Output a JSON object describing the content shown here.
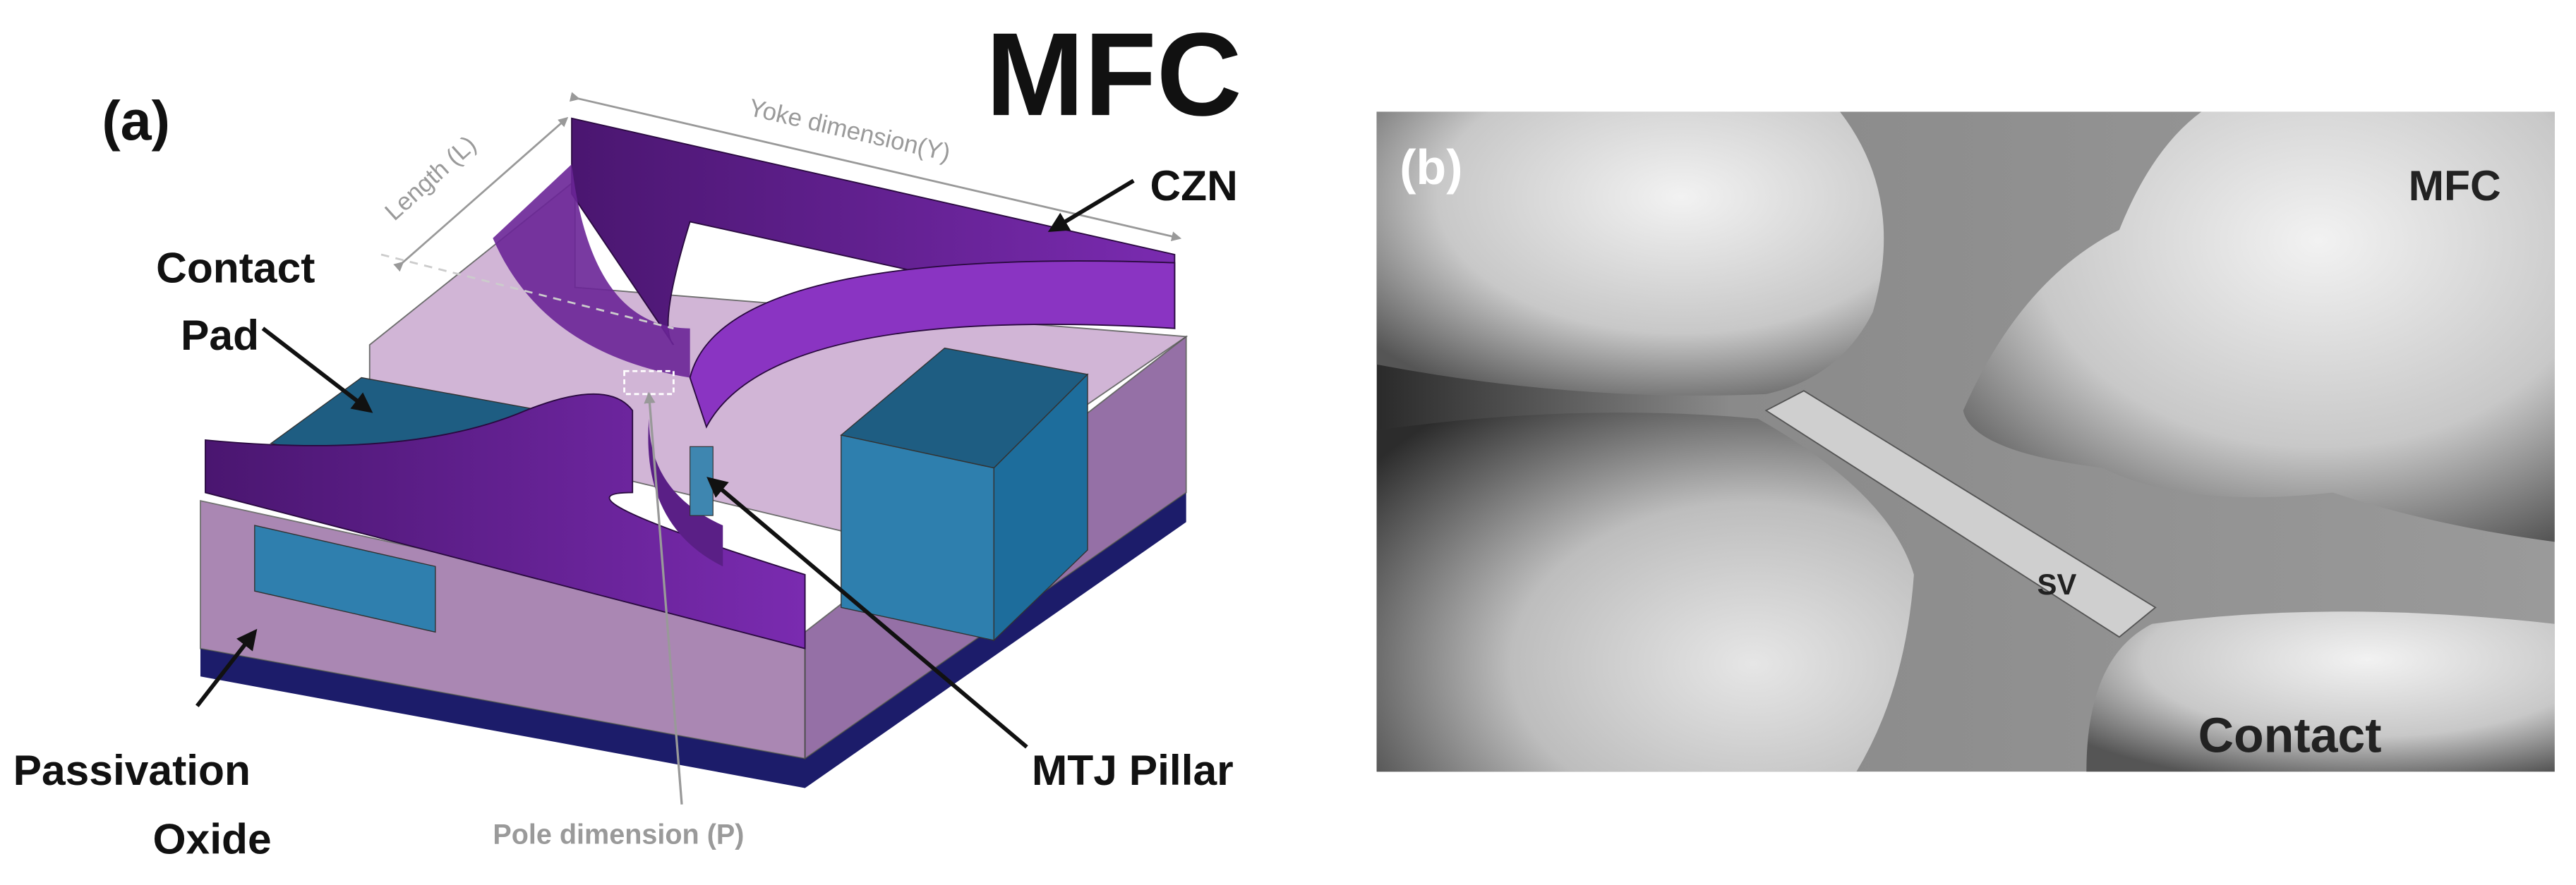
{
  "panel_a": {
    "label": "(a)",
    "title": "MFC",
    "annotations": {
      "length": "Length (L)",
      "yoke": "Yoke dimension(Y)",
      "czn": "CZN",
      "contact_pad": [
        "Contact",
        "Pad"
      ],
      "passivation_oxide": [
        "Passivation",
        "Oxide"
      ],
      "pole": "Pole dimension (P)",
      "mtj_pillar": "MTJ Pillar"
    }
  },
  "panel_b": {
    "label": "(b)",
    "mfc": "MFC",
    "sv": "SV",
    "contact": "Contact"
  }
}
